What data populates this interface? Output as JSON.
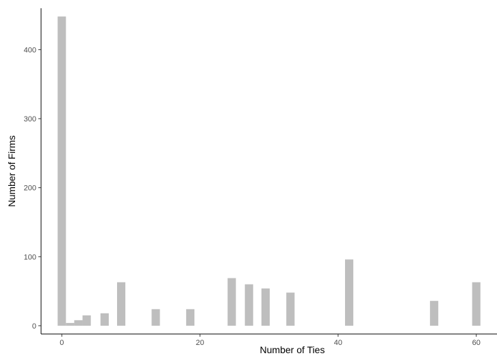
{
  "chart_data": {
    "type": "bar",
    "title": "",
    "xlabel": "Number of Ties",
    "ylabel": "Number of Firms",
    "xlim": [
      -3,
      63
    ],
    "ylim": [
      -12,
      460
    ],
    "x_ticks": [
      0,
      20,
      40,
      60
    ],
    "y_ticks": [
      0,
      100,
      200,
      300,
      400
    ],
    "bar_width": 1.2,
    "grid": false,
    "bar_color": "#bebebe",
    "x": [
      0,
      1.2,
      2.4,
      3.6,
      6.2,
      8.6,
      13.6,
      18.6,
      24.6,
      27.1,
      29.5,
      33.1,
      41.6,
      53.9,
      60.0
    ],
    "values": [
      448,
      4,
      8,
      15,
      18,
      63,
      24,
      24,
      69,
      60,
      54,
      48,
      96,
      36,
      63
    ]
  }
}
